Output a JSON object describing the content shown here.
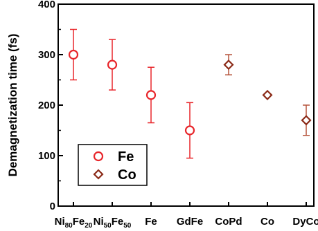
{
  "chart_data": {
    "type": "scatter",
    "ylabel": "Demagnetization time (fs)",
    "ylim": [
      0,
      400
    ],
    "yticks": [
      0,
      100,
      200,
      300,
      400
    ],
    "categories": [
      {
        "base": "Ni",
        "sub1": "80",
        "mid": "Fe",
        "sub2": "20"
      },
      {
        "base": "Ni",
        "sub1": "50",
        "mid": "Fe",
        "sub2": "50"
      },
      {
        "base": "Fe"
      },
      {
        "base": "GdFe"
      },
      {
        "base": "CoPd"
      },
      {
        "base": "Co"
      },
      {
        "base": "DyCo"
      }
    ],
    "series": [
      {
        "name": "Fe",
        "marker": "circle",
        "color": "#e8262b",
        "points": [
          {
            "category": 0,
            "y": 300,
            "err_low": 250,
            "err_high": 350
          },
          {
            "category": 1,
            "y": 280,
            "err_low": 230,
            "err_high": 330
          },
          {
            "category": 2,
            "y": 220,
            "err_low": 165,
            "err_high": 275
          },
          {
            "category": 3,
            "y": 150,
            "err_low": 95,
            "err_high": 205
          }
        ]
      },
      {
        "name": "Co",
        "marker": "diamond",
        "color": "#8b2a17",
        "errcolor": "#b5533a",
        "points": [
          {
            "category": 4,
            "y": 280,
            "err_low": 260,
            "err_high": 300
          },
          {
            "category": 5,
            "y": 220,
            "err_low": null,
            "err_high": null
          },
          {
            "category": 6,
            "y": 170,
            "err_low": 140,
            "err_high": 200
          }
        ]
      }
    ],
    "legend": {
      "placement": "bottom-left",
      "entries": [
        "Fe",
        "Co"
      ]
    }
  }
}
